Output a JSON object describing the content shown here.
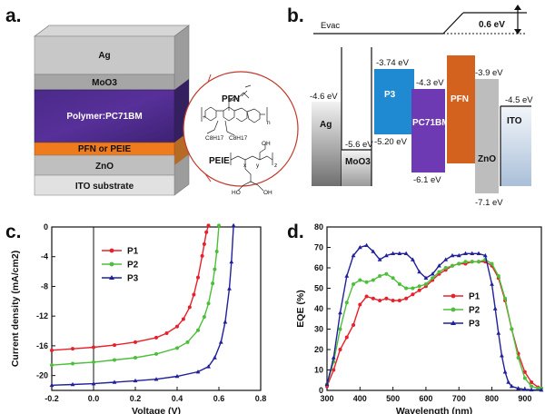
{
  "panels": {
    "a": {
      "label": "a.",
      "layers": [
        "Ag",
        "MoO3",
        "Polymer:PC71BM",
        "PFN or PEIE",
        "ZnO",
        "ITO substrate"
      ],
      "inset": {
        "pfn_label": "PFN",
        "peie_label": "PEIE",
        "sub_n": "n",
        "sub_x": "x",
        "sub_y": "y",
        "sub_z": "z",
        "side_chain": "C8H17"
      }
    },
    "b": {
      "label": "b.",
      "evac_label": "Evac",
      "vac_shift": "0.6 eV",
      "materials": [
        {
          "name": "Ag",
          "top": "-4.6 eV"
        },
        {
          "name": "MoO3",
          "top": "-5.6 eV"
        },
        {
          "name": "P3",
          "top": "-3.74 eV",
          "bottom": "-5.20 eV",
          "color": "#1f8ad1"
        },
        {
          "name": "PC71BM",
          "top": "-4.3 eV",
          "bottom": "-6.1 eV",
          "color": "#6e3ab3"
        },
        {
          "name": "PFN",
          "color": "#d2621e"
        },
        {
          "name": "ZnO",
          "top": "-3.9 eV",
          "bottom": "-7.1 eV",
          "color": "#bdbdbd"
        },
        {
          "name": "ITO",
          "top": "-4.5 eV"
        }
      ]
    },
    "c": {
      "label": "c."
    },
    "d": {
      "label": "d."
    }
  },
  "chart_data": [
    {
      "type": "line",
      "xlabel": "Voltage (V)",
      "ylabel": "Current density (mA/cm2)",
      "xlim": [
        -0.2,
        0.8
      ],
      "ylim": [
        -22,
        0
      ],
      "xticks": [
        "-0.2",
        "0.0",
        "0.2",
        "0.4",
        "0.6",
        "0.8"
      ],
      "yticks": [
        "0",
        "-4",
        "-8",
        "-12",
        "-16",
        "-20"
      ],
      "legend_position": "top-left",
      "series": [
        {
          "name": "P1",
          "color": "#e8202a",
          "marker": "circle",
          "x": [
            -0.2,
            -0.1,
            0.0,
            0.1,
            0.2,
            0.3,
            0.35,
            0.4,
            0.43,
            0.46,
            0.48,
            0.5,
            0.52,
            0.53,
            0.54,
            0.55
          ],
          "y": [
            -16.6,
            -16.4,
            -16.2,
            -15.9,
            -15.5,
            -14.9,
            -14.3,
            -13.4,
            -12.4,
            -10.8,
            -9.1,
            -6.8,
            -3.9,
            -2.3,
            -0.7,
            0.2
          ]
        },
        {
          "name": "P2",
          "color": "#4cbf3a",
          "marker": "circle",
          "x": [
            -0.2,
            -0.1,
            0.0,
            0.1,
            0.2,
            0.3,
            0.4,
            0.45,
            0.5,
            0.53,
            0.55,
            0.57,
            0.58,
            0.59,
            0.6
          ],
          "y": [
            -18.6,
            -18.4,
            -18.2,
            -17.9,
            -17.6,
            -17.1,
            -16.3,
            -15.5,
            -13.9,
            -12.1,
            -10.3,
            -7.6,
            -5.7,
            -3.3,
            0.2
          ]
        },
        {
          "name": "P3",
          "color": "#21209a",
          "marker": "triangle",
          "x": [
            -0.2,
            -0.1,
            0.0,
            0.1,
            0.2,
            0.3,
            0.4,
            0.5,
            0.55,
            0.58,
            0.61,
            0.63,
            0.65,
            0.66,
            0.67
          ],
          "y": [
            -21.3,
            -21.2,
            -21.1,
            -20.9,
            -20.7,
            -20.5,
            -20.1,
            -19.5,
            -18.8,
            -17.6,
            -15.5,
            -12.8,
            -8.3,
            -4.7,
            0.2
          ]
        }
      ]
    },
    {
      "type": "line",
      "xlabel": "Wavelength (nm)",
      "ylabel": "EQE (%)",
      "xlim": [
        300,
        950
      ],
      "ylim": [
        0,
        80
      ],
      "xticks": [
        "300",
        "400",
        "500",
        "600",
        "700",
        "800",
        "900"
      ],
      "yticks": [
        "0",
        "10",
        "20",
        "30",
        "40",
        "50",
        "60",
        "70",
        "80"
      ],
      "legend_position": "center-right",
      "series": [
        {
          "name": "P1",
          "color": "#e8202a",
          "marker": "circle",
          "x": [
            300,
            320,
            340,
            360,
            380,
            400,
            420,
            440,
            460,
            480,
            500,
            520,
            540,
            560,
            580,
            600,
            620,
            640,
            660,
            680,
            700,
            720,
            740,
            760,
            780,
            800,
            820,
            840,
            860,
            880,
            900,
            920,
            940,
            950
          ],
          "y": [
            2,
            10,
            20,
            26,
            32,
            42,
            46,
            45,
            44,
            45,
            44,
            44,
            45,
            47,
            49,
            51,
            54,
            57,
            59,
            61,
            62,
            62,
            63,
            63,
            63,
            61,
            55,
            44,
            30,
            18,
            9,
            4,
            1.5,
            1
          ]
        },
        {
          "name": "P2",
          "color": "#4cbf3a",
          "marker": "circle",
          "x": [
            300,
            320,
            340,
            360,
            380,
            400,
            420,
            440,
            460,
            480,
            500,
            520,
            540,
            560,
            580,
            600,
            620,
            640,
            660,
            680,
            700,
            720,
            740,
            760,
            780,
            800,
            820,
            840,
            860,
            880,
            900,
            920,
            940,
            950
          ],
          "y": [
            3,
            14,
            30,
            43,
            52,
            54,
            53,
            54,
            56,
            57,
            55,
            52,
            50,
            50,
            51,
            52,
            55,
            58,
            60,
            61,
            62,
            63,
            63,
            63,
            64,
            62,
            56,
            45,
            30,
            16,
            6,
            2,
            1,
            1
          ]
        },
        {
          "name": "P3",
          "color": "#21209a",
          "marker": "triangle",
          "x": [
            300,
            320,
            340,
            360,
            380,
            400,
            420,
            440,
            460,
            480,
            500,
            520,
            540,
            560,
            580,
            600,
            620,
            640,
            660,
            680,
            700,
            720,
            740,
            760,
            780,
            800,
            810,
            820,
            830,
            840,
            850,
            860,
            880,
            900,
            920,
            950
          ],
          "y": [
            3,
            16,
            38,
            56,
            66,
            70,
            71,
            68,
            64,
            66,
            67,
            67,
            67,
            64,
            58,
            55,
            57,
            61,
            64,
            66,
            66,
            67,
            67,
            67,
            66,
            52,
            40,
            28,
            17,
            9,
            4,
            2,
            1,
            0.5,
            0.3,
            0.2
          ]
        }
      ]
    }
  ]
}
